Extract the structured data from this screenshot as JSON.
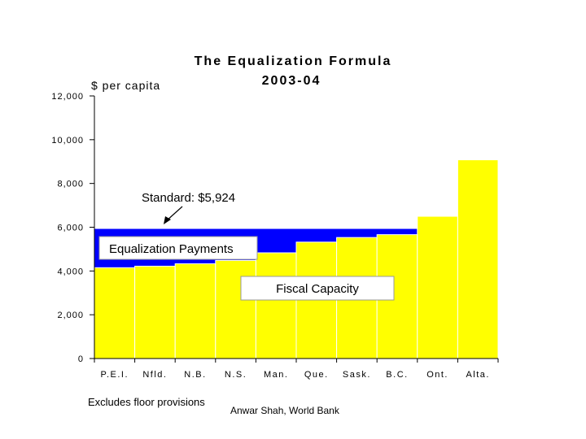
{
  "chart_data": {
    "type": "bar",
    "title": "The Equalization Formula",
    "subtitle": "2003-04",
    "ylabel": "$ per capita",
    "ylim": [
      0,
      12000
    ],
    "yticks": [
      "0",
      "2,000",
      "4,000",
      "6,000",
      "8,000",
      "10,000",
      "12,000"
    ],
    "ytick_values": [
      0,
      2000,
      4000,
      6000,
      8000,
      10000,
      12000
    ],
    "categories": [
      "P.E.I.",
      "Nfld.",
      "N.B.",
      "N.S.",
      "Man.",
      "Que.",
      "Sask.",
      "B.C.",
      "Ont.",
      "Alta."
    ],
    "values": [
      4150,
      4220,
      4330,
      4480,
      4830,
      5320,
      5530,
      5660,
      6500,
      9080
    ],
    "standard": 5924,
    "standard_label": "Standard: $5,924",
    "equalization_label": "Equalization Payments",
    "fiscal_capacity_label": "Fiscal Capacity",
    "bar_color": "#ffff00",
    "equalization_color": "#0000ff",
    "grid": false
  },
  "footnote": "Excludes floor provisions",
  "credit": "Anwar Shah, World Bank"
}
